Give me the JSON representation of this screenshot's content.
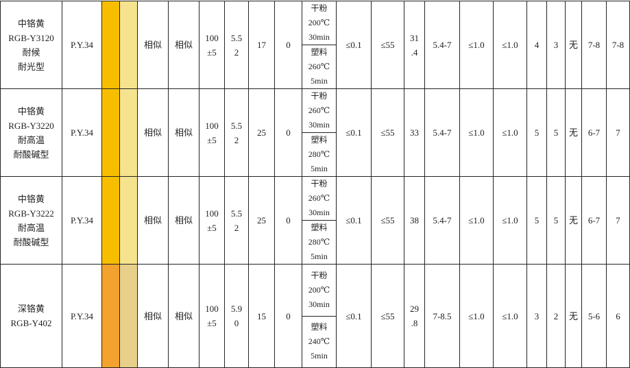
{
  "rows": [
    {
      "name": [
        "中铬黄",
        "RGB-Y3120",
        "耐候",
        "耐光型"
      ],
      "pigment": "P.Y.34",
      "swatch1": "#F7BE00",
      "swatch2": "#F5E38E",
      "c1": "相似",
      "c2": "相似",
      "strength": [
        "100",
        "±5"
      ],
      "v1": [
        "5.5",
        "2"
      ],
      "v2": "17",
      "v3": "0",
      "temp_top": [
        "干粉",
        "200℃",
        "30min"
      ],
      "temp_bottom": [
        "塑料",
        "260℃",
        "5min"
      ],
      "v4": "≤0.1",
      "v5": "≤55",
      "v6": [
        "31",
        ".4"
      ],
      "v7": "5.4-7",
      "v8": "≤1.0",
      "v9": "≤1.0",
      "v10": "4",
      "v11": "3",
      "v12": "无",
      "v13": "7-8",
      "v14": "7-8"
    },
    {
      "name": [
        "中铬黄",
        "RGB-Y3220",
        "耐高温",
        "耐酸碱型"
      ],
      "pigment": "P.Y.34",
      "swatch1": "#F7BE00",
      "swatch2": "#F5E38E",
      "c1": "相似",
      "c2": "相似",
      "strength": [
        "100",
        "±5"
      ],
      "v1": [
        "5.5",
        "2"
      ],
      "v2": "25",
      "v3": "0",
      "temp_top": [
        "干粉",
        "260℃",
        "30min"
      ],
      "temp_bottom": [
        "塑料",
        "280℃",
        "5min"
      ],
      "v4": "≤0.1",
      "v5": "≤55",
      "v6": [
        "33"
      ],
      "v7": "5.4-7",
      "v8": "≤1.0",
      "v9": "≤1.0",
      "v10": "5",
      "v11": "5",
      "v12": "无",
      "v13": "6-7",
      "v14": "7"
    },
    {
      "name": [
        "中铬黄",
        "RGB-Y3222",
        "耐高温",
        "耐酸碱型"
      ],
      "pigment": "P.Y.34",
      "swatch1": "#F7BE00",
      "swatch2": "#F5E38E",
      "c1": "相似",
      "c2": "相似",
      "strength": [
        "100",
        "±5"
      ],
      "v1": [
        "5.5",
        "2"
      ],
      "v2": "25",
      "v3": "0",
      "temp_top": [
        "干粉",
        "260℃",
        "30min"
      ],
      "temp_bottom": [
        "塑料",
        "280℃",
        "5min"
      ],
      "v4": "≤0.1",
      "v5": "≤55",
      "v6": [
        "38"
      ],
      "v7": "5.4-7",
      "v8": "≤1.0",
      "v9": "≤1.0",
      "v10": "5",
      "v11": "5",
      "v12": "无",
      "v13": "6-7",
      "v14": "7"
    },
    {
      "name": [
        "深铬黄",
        "RGB-Y402"
      ],
      "pigment": "P.Y.34",
      "swatch1": "#F2A22D",
      "swatch2": "#E9D08A",
      "c1": "相似",
      "c2": "相似",
      "strength": [
        "100",
        "±5"
      ],
      "v1": [
        "5.9",
        "0"
      ],
      "v2": "15",
      "v3": "0",
      "temp_top": [
        "干粉",
        "200℃",
        "30min"
      ],
      "temp_bottom": [
        "塑料",
        "240℃",
        "5min"
      ],
      "v4": "≤0.1",
      "v5": "≤55",
      "v6": [
        "29",
        ".8"
      ],
      "v7": "7-8.5",
      "v8": "≤1.0",
      "v9": "≤1.0",
      "v10": "3",
      "v11": "2",
      "v12": "无",
      "v13": "5-6",
      "v14": "6"
    }
  ]
}
